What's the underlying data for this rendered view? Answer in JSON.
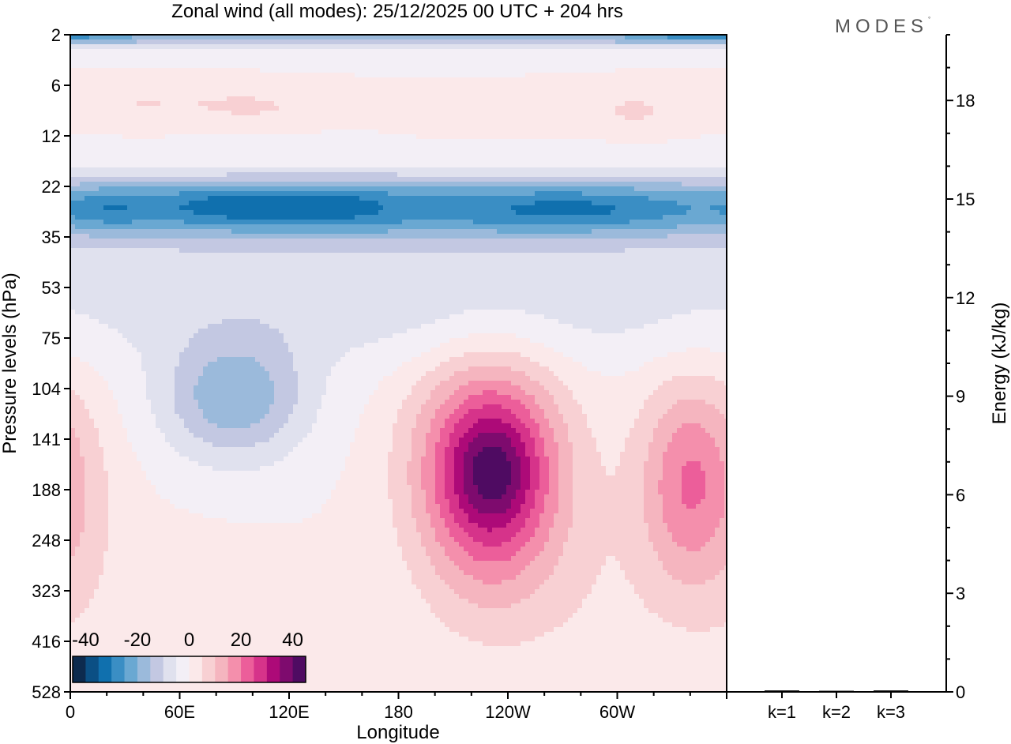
{
  "logo": {
    "text": "MODES",
    "mark": "°"
  },
  "chart_data": [
    {
      "type": "heatmap",
      "title": "Zonal wind (all modes):  25/12/2025  00 UTC  + 204 hrs",
      "xlabel": "Longitude",
      "ylabel": "Pressure levels (hPa)",
      "x_ticks": [
        "0",
        "60E",
        "120E",
        "180",
        "120W",
        "60W"
      ],
      "x_tick_degrees": [
        0,
        60,
        120,
        180,
        240,
        300
      ],
      "xlim": [
        0,
        360
      ],
      "y_ticks": [
        "2",
        "6",
        "12",
        "22",
        "35",
        "53",
        "75",
        "104",
        "141",
        "188",
        "248",
        "323",
        "416",
        "528"
      ],
      "colorbar": {
        "labels": [
          "-40",
          "-20",
          "0",
          "20",
          "40"
        ],
        "levels": [
          -40,
          -35,
          -30,
          -25,
          -20,
          -15,
          -10,
          -5,
          0,
          5,
          10,
          15,
          20,
          25,
          30,
          35,
          40
        ],
        "colors": [
          "#0d2a4e",
          "#0b4f84",
          "#1070ae",
          "#3a8ec4",
          "#6aa8d2",
          "#9bbadb",
          "#c3c8e2",
          "#e0e1ee",
          "#f3eff6",
          "#fbe9ea",
          "#f8d0d3",
          "#f5b5bf",
          "#f48fac",
          "#ec5e9a",
          "#d6338a",
          "#ad0a78",
          "#7e0b6e",
          "#4f0b62"
        ]
      },
      "blobs": [
        {
          "lon": 180,
          "p": 2.1,
          "dl": 360,
          "lp": 0.25,
          "u": -17
        },
        {
          "lon": 350,
          "p": 2.1,
          "dl": 45,
          "lp": 0.15,
          "u": -14
        },
        {
          "lon": 40,
          "p": 7.5,
          "dl": 40,
          "lp": 0.25,
          "u": 5
        },
        {
          "lon": 100,
          "p": 8,
          "dl": 30,
          "lp": 0.2,
          "u": 6
        },
        {
          "lon": 230,
          "p": 9,
          "dl": 35,
          "lp": 0.2,
          "u": 5
        },
        {
          "lon": 310,
          "p": 8.5,
          "dl": 25,
          "lp": 0.25,
          "u": 6
        },
        {
          "lon": 180,
          "p": 27,
          "dl": 380,
          "lp": 0.35,
          "u": -26
        },
        {
          "lon": 90,
          "p": 26,
          "dl": 45,
          "lp": 0.2,
          "u": -9
        },
        {
          "lon": 20,
          "p": 27,
          "dl": 25,
          "lp": 0.2,
          "u": -7
        },
        {
          "lon": 280,
          "p": 27,
          "dl": 60,
          "lp": 0.2,
          "u": -7
        },
        {
          "lon": 150,
          "p": 26,
          "dl": 30,
          "lp": 0.2,
          "u": -6
        },
        {
          "lon": 180,
          "p": 60,
          "dl": 300,
          "lp": 0.4,
          "u": -8
        },
        {
          "lon": 90,
          "p": 110,
          "dl": 40,
          "lp": 0.38,
          "u": -19
        },
        {
          "lon": 230,
          "p": 170,
          "dl": 40,
          "lp": 0.65,
          "u": 34
        },
        {
          "lon": 232,
          "p": 170,
          "dl": 22,
          "lp": 0.3,
          "u": 10
        },
        {
          "lon": 340,
          "p": 180,
          "dl": 28,
          "lp": 0.6,
          "u": 20
        },
        {
          "lon": 10,
          "p": 220,
          "dl": 25,
          "lp": 0.8,
          "u": 3
        },
        {
          "lon": 60,
          "p": 450,
          "dl": 60,
          "lp": 0.7,
          "u": 2
        },
        {
          "lon": 290,
          "p": 350,
          "dl": 40,
          "lp": 0.7,
          "u": 3
        }
      ]
    },
    {
      "type": "bar",
      "categories": [
        "k=1",
        "k=2",
        "k=3"
      ],
      "values": [
        0.02,
        0.01,
        0.02
      ],
      "ylabel": "Energy (kJ/kg)",
      "ylim": [
        0,
        20
      ],
      "y_ticks": [
        "0",
        "3",
        "6",
        "9",
        "12",
        "15",
        "18"
      ],
      "y_tick_values": [
        0,
        3,
        6,
        9,
        12,
        15,
        18
      ]
    }
  ]
}
